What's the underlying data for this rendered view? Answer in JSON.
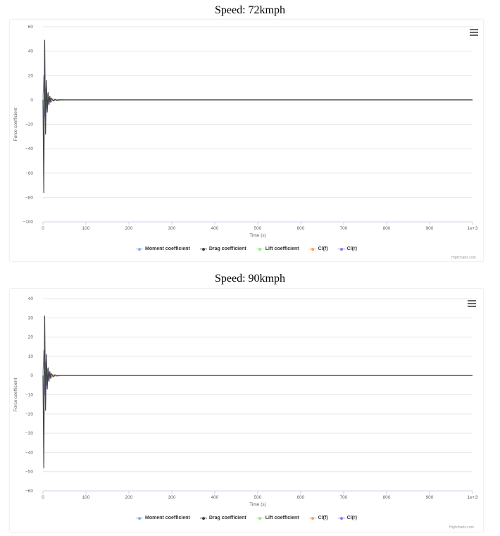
{
  "colors": {
    "moment": "#7cb5ec",
    "drag": "#434348",
    "lift": "#90ed7d",
    "clf": "#f7a35c",
    "clr": "#8085e9",
    "grid": "#e6e6e6",
    "axis": "#ccd6eb"
  },
  "icons": {
    "menu": "hamburger-menu-icon"
  },
  "charts": [
    {
      "heading": "Speed: 72kmph",
      "credit": "Highcharts.com"
    },
    {
      "heading": "Speed: 90kmph",
      "credit": "Highcharts.com"
    }
  ],
  "chart_data": [
    {
      "type": "line",
      "title": "Speed: 72kmph",
      "xlabel": "Time (s)",
      "ylabel": "Force coefficient",
      "xlim": [
        0,
        1000
      ],
      "ylim": [
        -100,
        60
      ],
      "x_ticks": [
        "0",
        "100",
        "200",
        "300",
        "400",
        "500",
        "600",
        "700",
        "800",
        "900",
        "1e+3"
      ],
      "y_ticks": [
        "60",
        "40",
        "20",
        "0",
        "−20",
        "−40",
        "−60",
        "−80",
        "−100"
      ],
      "grid": true,
      "legend_position": "bottom",
      "series": [
        {
          "name": "Moment coefficient",
          "x": [
            0,
            2,
            4,
            6,
            8,
            10,
            14,
            20,
            30,
            50,
            100,
            1000
          ],
          "values": [
            0,
            3,
            -4,
            3,
            -2,
            1.5,
            -1,
            0.5,
            -0.2,
            0,
            0,
            0
          ]
        },
        {
          "name": "Drag coefficient",
          "x": [
            0,
            2,
            4,
            6,
            8,
            10,
            12,
            14,
            16,
            18,
            20,
            24,
            28,
            32,
            40,
            50,
            100,
            1000
          ],
          "values": [
            0,
            -76,
            49,
            -28,
            16,
            -10,
            6,
            -4,
            3,
            -2,
            1.5,
            -0.8,
            0.5,
            -0.3,
            0.1,
            0,
            0,
            0
          ]
        },
        {
          "name": "Lift coefficient",
          "x": [
            0,
            2,
            4,
            6,
            8,
            10,
            14,
            20,
            30,
            50,
            100,
            1000
          ],
          "values": [
            0,
            6,
            -6,
            4,
            -3,
            2,
            -1,
            0.5,
            -0.2,
            0,
            0,
            0
          ]
        },
        {
          "name": "Cl(f)",
          "x": [
            0,
            2,
            4,
            6,
            8,
            10,
            12,
            14,
            16,
            20,
            26,
            34,
            50,
            100,
            1000
          ],
          "values": [
            0,
            -21,
            16,
            -12,
            9,
            -6,
            4,
            -3,
            2,
            -1.5,
            0.8,
            -0.3,
            0,
            0,
            0
          ]
        },
        {
          "name": "Cl(r)",
          "x": [
            0,
            2,
            4,
            6,
            8,
            10,
            12,
            14,
            16,
            20,
            26,
            34,
            50,
            100,
            1000
          ],
          "values": [
            0,
            20,
            -14,
            10,
            -7,
            5,
            -3,
            2,
            -1.5,
            1,
            -0.5,
            0.2,
            0,
            0,
            0
          ]
        }
      ]
    },
    {
      "type": "line",
      "title": "Speed: 90kmph",
      "xlabel": "Time (s)",
      "ylabel": "Force coefficient",
      "xlim": [
        0,
        1000
      ],
      "ylim": [
        -60,
        40
      ],
      "x_ticks": [
        "0",
        "100",
        "200",
        "300",
        "400",
        "500",
        "600",
        "700",
        "800",
        "900",
        "1e+3"
      ],
      "y_ticks": [
        "40",
        "30",
        "20",
        "10",
        "0",
        "−10",
        "−20",
        "−30",
        "−40",
        "−50",
        "−60"
      ],
      "grid": true,
      "legend_position": "bottom",
      "series": [
        {
          "name": "Moment coefficient",
          "x": [
            0,
            2,
            4,
            6,
            8,
            10,
            14,
            20,
            30,
            50,
            100,
            1000
          ],
          "values": [
            0,
            2,
            -3,
            2,
            -1.5,
            1,
            -0.6,
            0.3,
            -0.1,
            0,
            0,
            0
          ]
        },
        {
          "name": "Drag coefficient",
          "x": [
            0,
            2,
            4,
            6,
            8,
            10,
            12,
            14,
            16,
            18,
            20,
            24,
            28,
            32,
            40,
            50,
            100,
            1000
          ],
          "values": [
            0,
            -48,
            31,
            -18,
            11,
            -7,
            4,
            -3,
            2,
            -1.5,
            1,
            -0.6,
            0.4,
            -0.2,
            0.1,
            0,
            0,
            0
          ]
        },
        {
          "name": "Lift coefficient",
          "x": [
            0,
            2,
            4,
            6,
            8,
            10,
            14,
            20,
            30,
            50,
            100,
            1000
          ],
          "values": [
            0,
            4,
            -4,
            3,
            -2,
            1.5,
            -0.7,
            0.4,
            -0.1,
            0,
            0,
            0
          ]
        },
        {
          "name": "Cl(f)",
          "x": [
            0,
            2,
            4,
            6,
            8,
            10,
            12,
            14,
            16,
            20,
            26,
            34,
            50,
            100,
            1000
          ],
          "values": [
            0,
            -14,
            11,
            -8,
            6,
            -4,
            3,
            -2,
            1.5,
            -1,
            0.5,
            -0.2,
            0,
            0,
            0
          ]
        },
        {
          "name": "Cl(r)",
          "x": [
            0,
            2,
            4,
            6,
            8,
            10,
            12,
            14,
            16,
            20,
            26,
            34,
            50,
            100,
            1000
          ],
          "values": [
            0,
            13,
            -10,
            7,
            -5,
            3.5,
            -2.5,
            1.5,
            -1,
            0.6,
            -0.3,
            0.1,
            0,
            0,
            0
          ]
        }
      ]
    }
  ]
}
